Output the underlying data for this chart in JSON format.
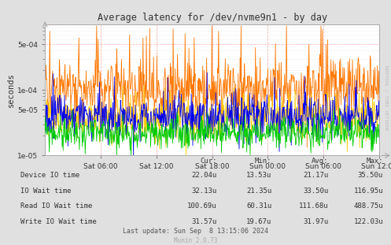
{
  "title": "Average latency for /dev/nvme9n1 - by day",
  "ylabel": "seconds",
  "background_color": "#e0e0e0",
  "plot_bg_color": "#ffffff",
  "ymin": 1e-05,
  "ymax": 0.001,
  "num_points": 700,
  "series": {
    "device_io": {
      "label": "Device IO time",
      "color": "#00cc00",
      "base": 2.2e-05,
      "noise": 0.28,
      "spikes": false
    },
    "io_wait": {
      "label": "IO Wait time",
      "color": "#0000ee",
      "base": 3.8e-05,
      "noise": 0.38,
      "spikes": true,
      "spike_prob": 0.01,
      "spike_mult": 2.5
    },
    "read_io_wait": {
      "label": "Read IO Wait time",
      "color": "#ff7700",
      "base": 0.000105,
      "noise": 0.5,
      "spikes": true,
      "spike_prob": 0.04,
      "spike_mult": 4.0
    },
    "write_io_wait": {
      "label": "Write IO Wait time",
      "color": "#ffcc00",
      "base": 3.8e-05,
      "noise": 0.38,
      "spikes": false
    }
  },
  "xtick_labels": [
    "Sat 06:00",
    "Sat 12:00",
    "Sat 18:00",
    "Sun 00:00",
    "Sun 06:00",
    "Sun 12:00"
  ],
  "ytick_labels": [
    "1e-05",
    "5e-05",
    "1e-04",
    "5e-04"
  ],
  "ytick_vals": [
    1e-05,
    5e-05,
    0.0001,
    0.0005
  ],
  "legend_headers": [
    "Cur:",
    "Min:",
    "Avg:",
    "Max:"
  ],
  "legend_rows": [
    [
      "Device IO time",
      "22.04u",
      "13.53u",
      "21.17u",
      "35.50u"
    ],
    [
      "IO Wait time",
      "32.13u",
      "21.35u",
      "33.50u",
      "116.95u"
    ],
    [
      "Read IO Wait time",
      "100.69u",
      "60.31u",
      "111.68u",
      "488.75u"
    ],
    [
      "Write IO Wait time",
      "31.57u",
      "19.67u",
      "31.97u",
      "122.03u"
    ]
  ],
  "legend_colors": [
    "#00cc00",
    "#0000ee",
    "#ff7700",
    "#ffcc00"
  ],
  "last_update": "Last update: Sun Sep  8 13:15:06 2024",
  "rrdtool_label": "RRDTOOL / TOBI OETIKER",
  "munin_label": "Munin 2.0.73"
}
